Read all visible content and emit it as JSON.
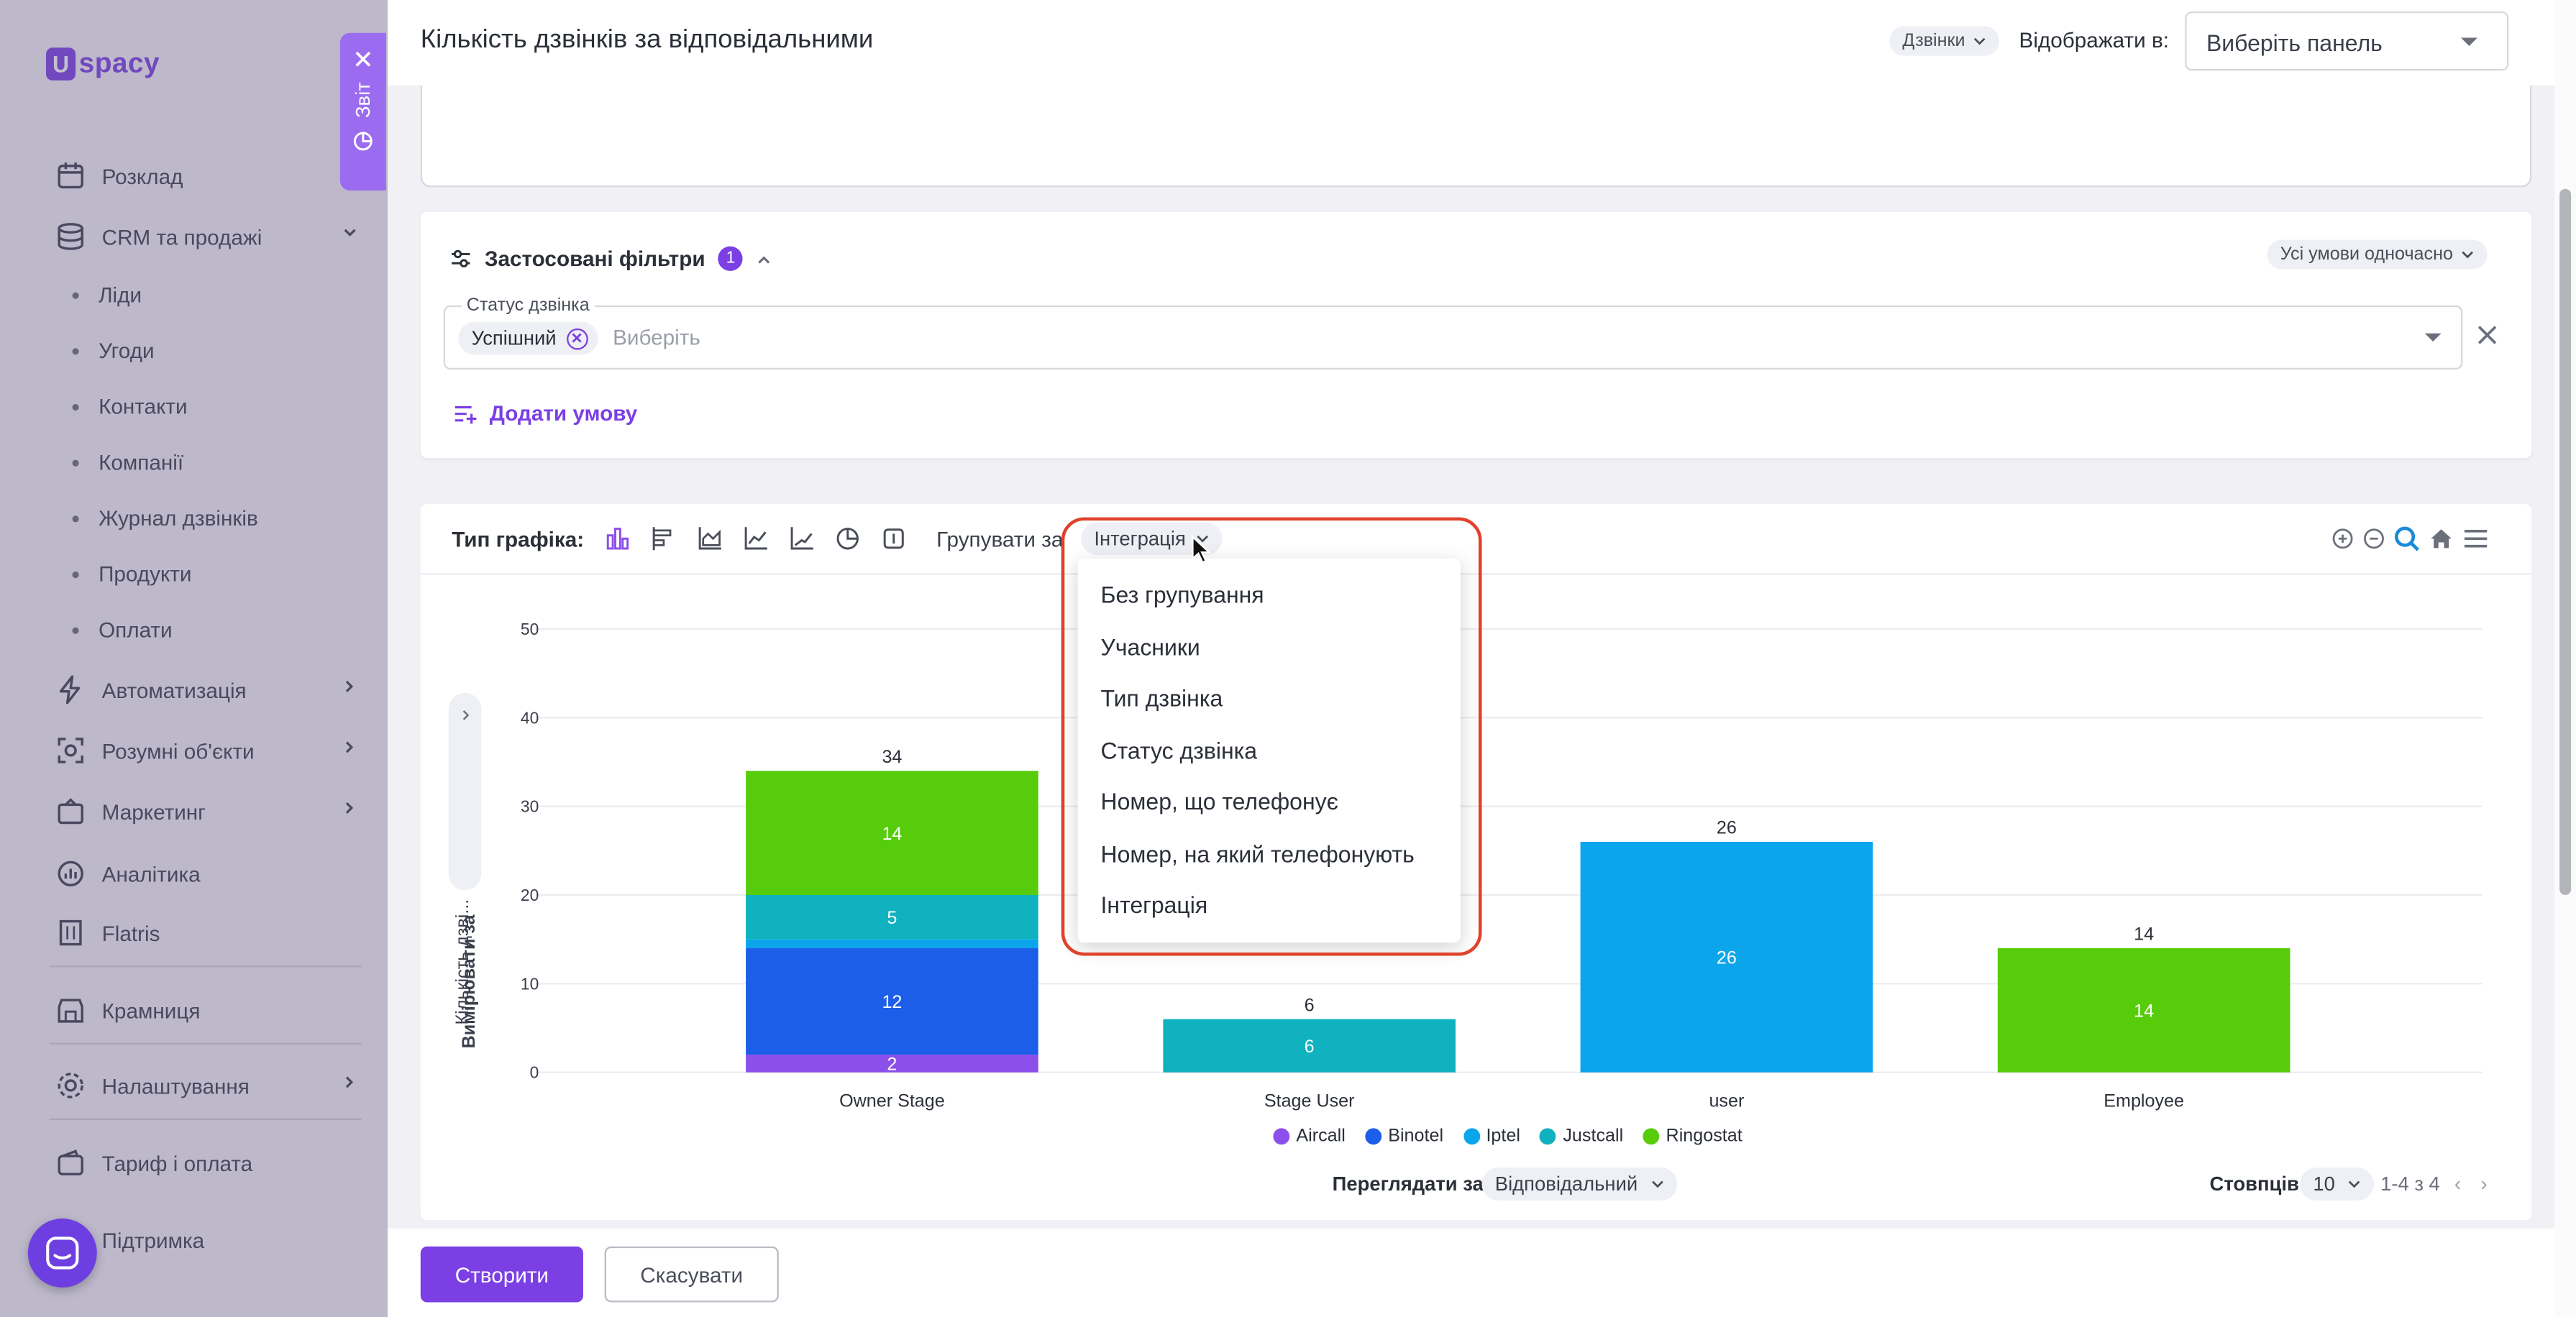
{
  "sidebar": {
    "logo_text": "spacy",
    "logo_mark": "U",
    "items": [
      {
        "label": "Розклад",
        "icon": "calendar-icon"
      },
      {
        "label": "CRM та продажі",
        "icon": "database-icon"
      },
      {
        "label": "Автоматизація",
        "icon": "lightning-icon"
      },
      {
        "label": "Розумні об'єкти",
        "icon": "smart-object-icon"
      },
      {
        "label": "Маркетинг",
        "icon": "marketing-icon"
      },
      {
        "label": "Аналітика",
        "icon": "analytics-icon"
      },
      {
        "label": "Flatris",
        "icon": "building-icon"
      },
      {
        "label": "Крамниця",
        "icon": "store-icon"
      },
      {
        "label": "Налаштування",
        "icon": "gear-icon"
      },
      {
        "label": "Тариф і оплата",
        "icon": "wallet-icon"
      },
      {
        "label": "Підтримка",
        "icon": "support-icon"
      }
    ],
    "crm_subitems": [
      "Ліди",
      "Угоди",
      "Контакти",
      "Компанії",
      "Журнал дзвінків",
      "Продукти",
      "Оплати"
    ],
    "report_tab_label": "Звіт"
  },
  "header": {
    "title": "Кількість дзвінків за відповідальними",
    "entity_pill": "Дзвінки",
    "display_in_label": "Відображати в:",
    "display_select_placeholder": "Виберіть панель"
  },
  "filters": {
    "title": "Застосовані фільтри",
    "count": "1",
    "mode_pill": "Усі умови одночасно",
    "status_field_label": "Статус дзвінка",
    "status_chip": "Успішний",
    "status_placeholder": "Виберіть",
    "add_condition": "Додати умову"
  },
  "chart_toolbar": {
    "type_label": "Тип графіка:",
    "group_label": "Групувати за",
    "group_value": "Інтеграція"
  },
  "group_dropdown": {
    "options": [
      "Без групування",
      "Учасники",
      "Тип дзвінка",
      "Статус дзвінка",
      "Номер, що телефонує",
      "Номер, на який телефонують",
      "Інтеграція"
    ]
  },
  "chart_controls": {
    "y_axis_pill": "Кількість дзві...",
    "measure_label": "Вимірювати за",
    "view_by_label": "Переглядати за",
    "view_by_value": "Відповідальний",
    "columns_label": "Стовпців",
    "columns_value": "10",
    "page_info": "1-4 з 4"
  },
  "chart_data": {
    "type": "bar",
    "stacked": true,
    "categories": [
      "Owner Stage",
      "Stage User",
      "user",
      "Employee"
    ],
    "ylim": [
      0,
      50
    ],
    "yticks": [
      0,
      10,
      20,
      30,
      40,
      50
    ],
    "totals": [
      34,
      6,
      26,
      14
    ],
    "series": [
      {
        "name": "Aircall",
        "color": "#8c4fe9",
        "values": [
          2,
          0,
          0,
          0
        ]
      },
      {
        "name": "Binotel",
        "color": "#1d5ee8",
        "values": [
          12,
          0,
          0,
          0
        ]
      },
      {
        "name": "Iptel",
        "color": "#0ba5ec",
        "values": [
          1,
          0,
          26,
          0
        ]
      },
      {
        "name": "Justcall",
        "color": "#0fb2be",
        "values": [
          5,
          6,
          0,
          0
        ]
      },
      {
        "name": "Ringostat",
        "color": "#56cc0a",
        "values": [
          14,
          0,
          0,
          14
        ]
      }
    ],
    "legend_position": "bottom",
    "grid": true
  },
  "footer": {
    "create_label": "Створити",
    "cancel_label": "Скасувати"
  }
}
